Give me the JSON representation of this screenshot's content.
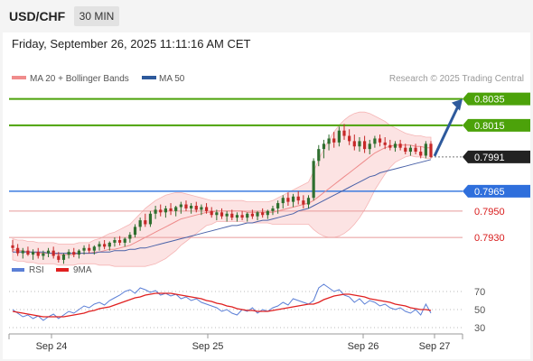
{
  "header": {
    "pair": "USD/CHF",
    "timeframe": "30 MIN"
  },
  "datetime": "Friday, September 26, 2025 11:11:16 AM CET",
  "legend": {
    "ma20": {
      "label": "MA 20 + Bollinger Bands",
      "color": "#f08c8c"
    },
    "ma50": {
      "label": "MA 50",
      "color": "#2e5a9c"
    },
    "credit": "Research © 2025 Trading Central"
  },
  "rsi_legend": {
    "rsi": {
      "label": "RSI",
      "color": "#5b7fd6"
    },
    "ma9": {
      "label": "9MA",
      "color": "#e02020"
    }
  },
  "chart_data": [
    {
      "type": "candlestick",
      "title": "USD/CHF",
      "x_labels": [
        "Sep 24",
        "Sep 25",
        "Sep 26",
        "Sep 27"
      ],
      "ylim": [
        0.7915,
        0.8045
      ],
      "candles": [
        [
          0.7924,
          0.7928,
          0.7919,
          0.7922
        ],
        [
          0.7922,
          0.7925,
          0.7916,
          0.7918
        ],
        [
          0.7918,
          0.7922,
          0.7914,
          0.792
        ],
        [
          0.792,
          0.7923,
          0.7916,
          0.7917
        ],
        [
          0.7917,
          0.7921,
          0.7913,
          0.7919
        ],
        [
          0.7919,
          0.7922,
          0.7914,
          0.7916
        ],
        [
          0.7916,
          0.792,
          0.7913,
          0.7918
        ],
        [
          0.7918,
          0.7922,
          0.7915,
          0.792
        ],
        [
          0.792,
          0.7923,
          0.7914,
          0.7916
        ],
        [
          0.7916,
          0.7919,
          0.7911,
          0.7913
        ],
        [
          0.7913,
          0.7918,
          0.791,
          0.7917
        ],
        [
          0.7917,
          0.7921,
          0.7914,
          0.7919
        ],
        [
          0.7919,
          0.7922,
          0.7915,
          0.7917
        ],
        [
          0.7917,
          0.7921,
          0.7914,
          0.792
        ],
        [
          0.792,
          0.7924,
          0.7917,
          0.7922
        ],
        [
          0.7922,
          0.7925,
          0.7918,
          0.792
        ],
        [
          0.792,
          0.7924,
          0.7917,
          0.7923
        ],
        [
          0.7923,
          0.7927,
          0.792,
          0.7925
        ],
        [
          0.7925,
          0.7928,
          0.7921,
          0.7923
        ],
        [
          0.7923,
          0.7927,
          0.792,
          0.7926
        ],
        [
          0.7926,
          0.793,
          0.7923,
          0.7928
        ],
        [
          0.7928,
          0.7931,
          0.7924,
          0.7926
        ],
        [
          0.7926,
          0.793,
          0.7923,
          0.7929
        ],
        [
          0.7929,
          0.7934,
          0.7926,
          0.7932
        ],
        [
          0.7932,
          0.794,
          0.793,
          0.7938
        ],
        [
          0.7938,
          0.7945,
          0.7935,
          0.7943
        ],
        [
          0.7943,
          0.7948,
          0.7938,
          0.794
        ],
        [
          0.794,
          0.795,
          0.7938,
          0.7948
        ],
        [
          0.7948,
          0.7954,
          0.7944,
          0.7951
        ],
        [
          0.7951,
          0.7955,
          0.7946,
          0.7949
        ],
        [
          0.7949,
          0.7954,
          0.7945,
          0.7952
        ],
        [
          0.7952,
          0.7956,
          0.7947,
          0.795
        ],
        [
          0.795,
          0.7954,
          0.7946,
          0.7953
        ],
        [
          0.7953,
          0.7957,
          0.7948,
          0.7955
        ],
        [
          0.7955,
          0.7958,
          0.795,
          0.7952
        ],
        [
          0.7952,
          0.7956,
          0.7948,
          0.7954
        ],
        [
          0.7954,
          0.7957,
          0.7949,
          0.7951
        ],
        [
          0.7951,
          0.7955,
          0.7947,
          0.7953
        ],
        [
          0.7953,
          0.7956,
          0.7948,
          0.795
        ],
        [
          0.795,
          0.7953,
          0.7945,
          0.7947
        ],
        [
          0.7947,
          0.7951,
          0.7943,
          0.7949
        ],
        [
          0.7949,
          0.7952,
          0.7944,
          0.7946
        ],
        [
          0.7946,
          0.795,
          0.7942,
          0.7948
        ],
        [
          0.7948,
          0.7951,
          0.7943,
          0.7945
        ],
        [
          0.7945,
          0.7949,
          0.7942,
          0.7947
        ],
        [
          0.7947,
          0.795,
          0.7943,
          0.7945
        ],
        [
          0.7945,
          0.7949,
          0.7942,
          0.7948
        ],
        [
          0.7948,
          0.7951,
          0.7944,
          0.7946
        ],
        [
          0.7946,
          0.795,
          0.7943,
          0.7949
        ],
        [
          0.7949,
          0.7952,
          0.7945,
          0.7947
        ],
        [
          0.7947,
          0.7951,
          0.7944,
          0.795
        ],
        [
          0.795,
          0.7954,
          0.7947,
          0.7952
        ],
        [
          0.7952,
          0.7958,
          0.7948,
          0.7956
        ],
        [
          0.7956,
          0.7962,
          0.7952,
          0.796
        ],
        [
          0.796,
          0.7964,
          0.7954,
          0.7957
        ],
        [
          0.7957,
          0.7963,
          0.7953,
          0.7961
        ],
        [
          0.7961,
          0.7965,
          0.7955,
          0.7958
        ],
        [
          0.7958,
          0.7962,
          0.7952,
          0.7955
        ],
        [
          0.7955,
          0.7962,
          0.7952,
          0.796
        ],
        [
          0.796,
          0.799,
          0.7958,
          0.7988
        ],
        [
          0.7988,
          0.8,
          0.7984,
          0.7997
        ],
        [
          0.7997,
          0.8004,
          0.799,
          0.8001
        ],
        [
          0.8001,
          0.8008,
          0.7996,
          0.8005
        ],
        [
          0.8005,
          0.801,
          0.7998,
          0.8002
        ],
        [
          0.8002,
          0.8014,
          0.7999,
          0.8011
        ],
        [
          0.8011,
          0.8016,
          0.8004,
          0.8007
        ],
        [
          0.8007,
          0.8012,
          0.8,
          0.8003
        ],
        [
          0.8003,
          0.8008,
          0.7996,
          0.7999
        ],
        [
          0.7999,
          0.8006,
          0.7995,
          0.8003
        ],
        [
          0.8003,
          0.8007,
          0.7994,
          0.7997
        ],
        [
          0.7997,
          0.8004,
          0.7993,
          0.8001
        ],
        [
          0.8001,
          0.8007,
          0.7998,
          0.8005
        ],
        [
          0.8005,
          0.8008,
          0.7999,
          0.8002
        ],
        [
          0.8002,
          0.8006,
          0.7997,
          0.8
        ],
        [
          0.8,
          0.8004,
          0.7996,
          0.7998
        ],
        [
          0.7998,
          0.8003,
          0.7995,
          0.8001
        ],
        [
          0.8001,
          0.8004,
          0.7996,
          0.7998
        ],
        [
          0.7998,
          0.8001,
          0.7993,
          0.7995
        ],
        [
          0.7995,
          0.8,
          0.7992,
          0.7998
        ],
        [
          0.7998,
          0.8001,
          0.7993,
          0.7995
        ],
        [
          0.7995,
          0.7999,
          0.799,
          0.7992
        ],
        [
          0.7992,
          0.8003,
          0.799,
          0.8001
        ],
        [
          0.8001,
          0.8003,
          0.799,
          0.7991
        ]
      ],
      "ma20": [
        0.7921,
        0.792,
        0.792,
        0.7919,
        0.7919,
        0.7918,
        0.7918,
        0.7918,
        0.7918,
        0.7917,
        0.7917,
        0.7917,
        0.7917,
        0.7918,
        0.7918,
        0.7918,
        0.7919,
        0.7919,
        0.792,
        0.7921,
        0.7921,
        0.7922,
        0.7923,
        0.7924,
        0.7926,
        0.7928,
        0.793,
        0.7932,
        0.7934,
        0.7936,
        0.7938,
        0.794,
        0.7942,
        0.7944,
        0.7945,
        0.7946,
        0.7947,
        0.7948,
        0.7949,
        0.7949,
        0.795,
        0.795,
        0.795,
        0.795,
        0.795,
        0.795,
        0.7949,
        0.7949,
        0.7949,
        0.7949,
        0.7949,
        0.7949,
        0.795,
        0.7951,
        0.7952,
        0.7953,
        0.7954,
        0.7955,
        0.7956,
        0.7958,
        0.7961,
        0.7964,
        0.7967,
        0.797,
        0.7973,
        0.7976,
        0.7979,
        0.7982,
        0.7985,
        0.7988,
        0.7991,
        0.7994,
        0.7996,
        0.7998,
        0.7999,
        0.8,
        0.8,
        0.8,
        0.8,
        0.7999,
        0.7999,
        0.7998,
        0.7998
      ],
      "ma50": [
        0.7919,
        0.7919,
        0.7919,
        0.7919,
        0.7919,
        0.7919,
        0.7919,
        0.7918,
        0.7918,
        0.7918,
        0.7918,
        0.7918,
        0.7918,
        0.7918,
        0.7918,
        0.7918,
        0.7918,
        0.7919,
        0.7919,
        0.7919,
        0.792,
        0.792,
        0.792,
        0.7921,
        0.7921,
        0.7922,
        0.7922,
        0.7923,
        0.7924,
        0.7925,
        0.7926,
        0.7927,
        0.7928,
        0.7929,
        0.793,
        0.7931,
        0.7932,
        0.7933,
        0.7934,
        0.7935,
        0.7936,
        0.7937,
        0.7938,
        0.7939,
        0.7939,
        0.794,
        0.7941,
        0.7941,
        0.7942,
        0.7943,
        0.7943,
        0.7944,
        0.7945,
        0.7946,
        0.7947,
        0.7948,
        0.795,
        0.7951,
        0.7952,
        0.7954,
        0.7956,
        0.7958,
        0.796,
        0.7962,
        0.7964,
        0.7966,
        0.7968,
        0.797,
        0.7972,
        0.7974,
        0.7976,
        0.7977,
        0.7979,
        0.798,
        0.7981,
        0.7982,
        0.7983,
        0.7984,
        0.7985,
        0.7986,
        0.7987,
        0.7988,
        0.7989
      ],
      "bb_width": [
        0.0008,
        0.0008,
        0.0008,
        0.0008,
        0.0008,
        0.0008,
        0.0008,
        0.0008,
        0.0008,
        0.0008,
        0.0008,
        0.0008,
        0.0008,
        0.0008,
        0.0008,
        0.0008,
        0.0009,
        0.001,
        0.0011,
        0.0012,
        0.0013,
        0.0014,
        0.0015,
        0.0016,
        0.0018,
        0.002,
        0.0022,
        0.0023,
        0.0024,
        0.0024,
        0.0024,
        0.0023,
        0.0022,
        0.002,
        0.0018,
        0.0016,
        0.0014,
        0.0012,
        0.001,
        0.0009,
        0.0008,
        0.0008,
        0.0008,
        0.0008,
        0.0008,
        0.0008,
        0.0008,
        0.0008,
        0.0008,
        0.0008,
        0.0008,
        0.0009,
        0.001,
        0.0011,
        0.0012,
        0.0013,
        0.0014,
        0.0015,
        0.0016,
        0.0022,
        0.0028,
        0.0033,
        0.0037,
        0.004,
        0.0042,
        0.0043,
        0.0043,
        0.0042,
        0.004,
        0.0037,
        0.0033,
        0.0028,
        0.0024,
        0.002,
        0.0016,
        0.0013,
        0.0011,
        0.0009,
        0.0008,
        0.0008,
        0.0008,
        0.0008,
        0.0008
      ],
      "levels": [
        {
          "value": "0.8035",
          "color": "#4ca20a",
          "label_bg": "#4ca20a",
          "label_color": "#ffffff"
        },
        {
          "value": "0.8015",
          "color": "#4ca20a",
          "label_bg": "#4ca20a",
          "label_color": "#ffffff"
        },
        {
          "value": "0.7991",
          "color": "#888888",
          "label_bg": "#222222",
          "label_color": "#ffffff",
          "dotted": true
        },
        {
          "value": "0.7965",
          "color": "#3b7be0",
          "label_bg": "#2f6fdc",
          "label_color": "#ffffff"
        },
        {
          "value": "0.7950",
          "color": "#e89a9a",
          "label_bg": "none",
          "label_color": "#d81c1c"
        },
        {
          "value": "0.7930",
          "color": "#e89a9a",
          "label_bg": "none",
          "label_color": "#d81c1c"
        }
      ],
      "projection": {
        "from": 0.7991,
        "to": 0.8035,
        "color": "#2e5a9c"
      }
    },
    {
      "type": "line",
      "title": "RSI",
      "ylim": [
        25,
        80
      ],
      "levels": [
        "70",
        "50",
        "30"
      ],
      "series": [
        {
          "name": "RSI",
          "color": "#5b7fd6",
          "values": [
            50,
            46,
            42,
            44,
            40,
            43,
            38,
            42,
            45,
            40,
            44,
            48,
            46,
            50,
            54,
            52,
            56,
            58,
            55,
            60,
            63,
            66,
            70,
            72,
            68,
            74,
            72,
            69,
            71,
            66,
            68,
            65,
            67,
            62,
            64,
            60,
            62,
            58,
            56,
            54,
            52,
            48,
            50,
            46,
            44,
            50,
            48,
            52,
            46,
            50,
            48,
            52,
            54,
            58,
            55,
            62,
            60,
            58,
            56,
            60,
            74,
            78,
            74,
            70,
            72,
            66,
            64,
            58,
            62,
            56,
            60,
            58,
            54,
            56,
            52,
            50,
            52,
            48,
            46,
            50,
            44,
            56,
            46
          ]
        },
        {
          "name": "9MA",
          "color": "#e02020",
          "values": [
            48,
            47,
            46,
            45,
            44,
            43,
            42,
            42,
            42,
            42,
            42,
            43,
            44,
            45,
            46,
            48,
            49,
            51,
            52,
            53,
            55,
            57,
            59,
            61,
            63,
            64,
            66,
            67,
            68,
            68,
            68,
            68,
            67,
            66,
            65,
            64,
            63,
            62,
            60,
            59,
            57,
            56,
            54,
            53,
            51,
            50,
            49,
            49,
            48,
            48,
            48,
            49,
            50,
            51,
            52,
            53,
            54,
            55,
            56,
            56,
            58,
            61,
            63,
            65,
            66,
            67,
            67,
            66,
            65,
            64,
            62,
            61,
            60,
            59,
            58,
            56,
            55,
            54,
            52,
            51,
            50,
            50,
            49
          ]
        }
      ]
    }
  ]
}
